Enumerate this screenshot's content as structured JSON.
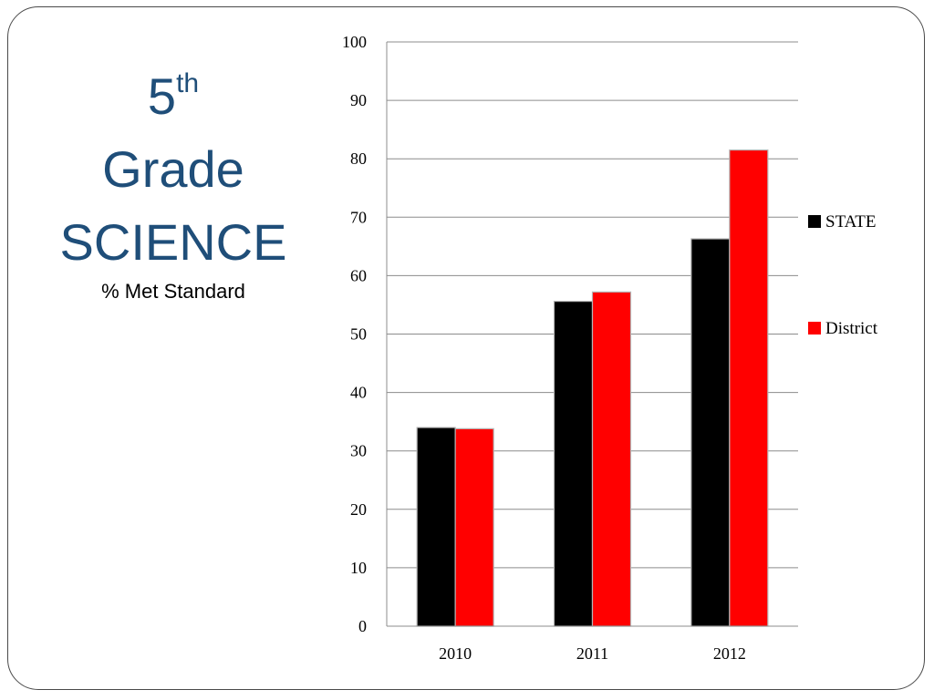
{
  "title": {
    "number": "5",
    "suffix": "th",
    "line2": "Grade",
    "line3": "SCIENCE"
  },
  "subtitle": "% Met Standard",
  "colors": {
    "title": "#1f4e79",
    "state": "#000000",
    "district": "#ff0000"
  },
  "chart_data": {
    "type": "bar",
    "categories": [
      "2010",
      "2011",
      "2012"
    ],
    "series": [
      {
        "name": "STATE",
        "values": [
          34,
          55.6,
          66.3
        ],
        "color": "#000000"
      },
      {
        "name": "District",
        "values": [
          33.8,
          57.2,
          81.5
        ],
        "color": "#ff0000"
      }
    ],
    "ylim": [
      0,
      100
    ],
    "yticks": [
      0,
      10,
      20,
      30,
      40,
      50,
      60,
      70,
      80,
      90,
      100
    ],
    "grid": true,
    "legend": "right",
    "xlabel": "",
    "ylabel": ""
  }
}
